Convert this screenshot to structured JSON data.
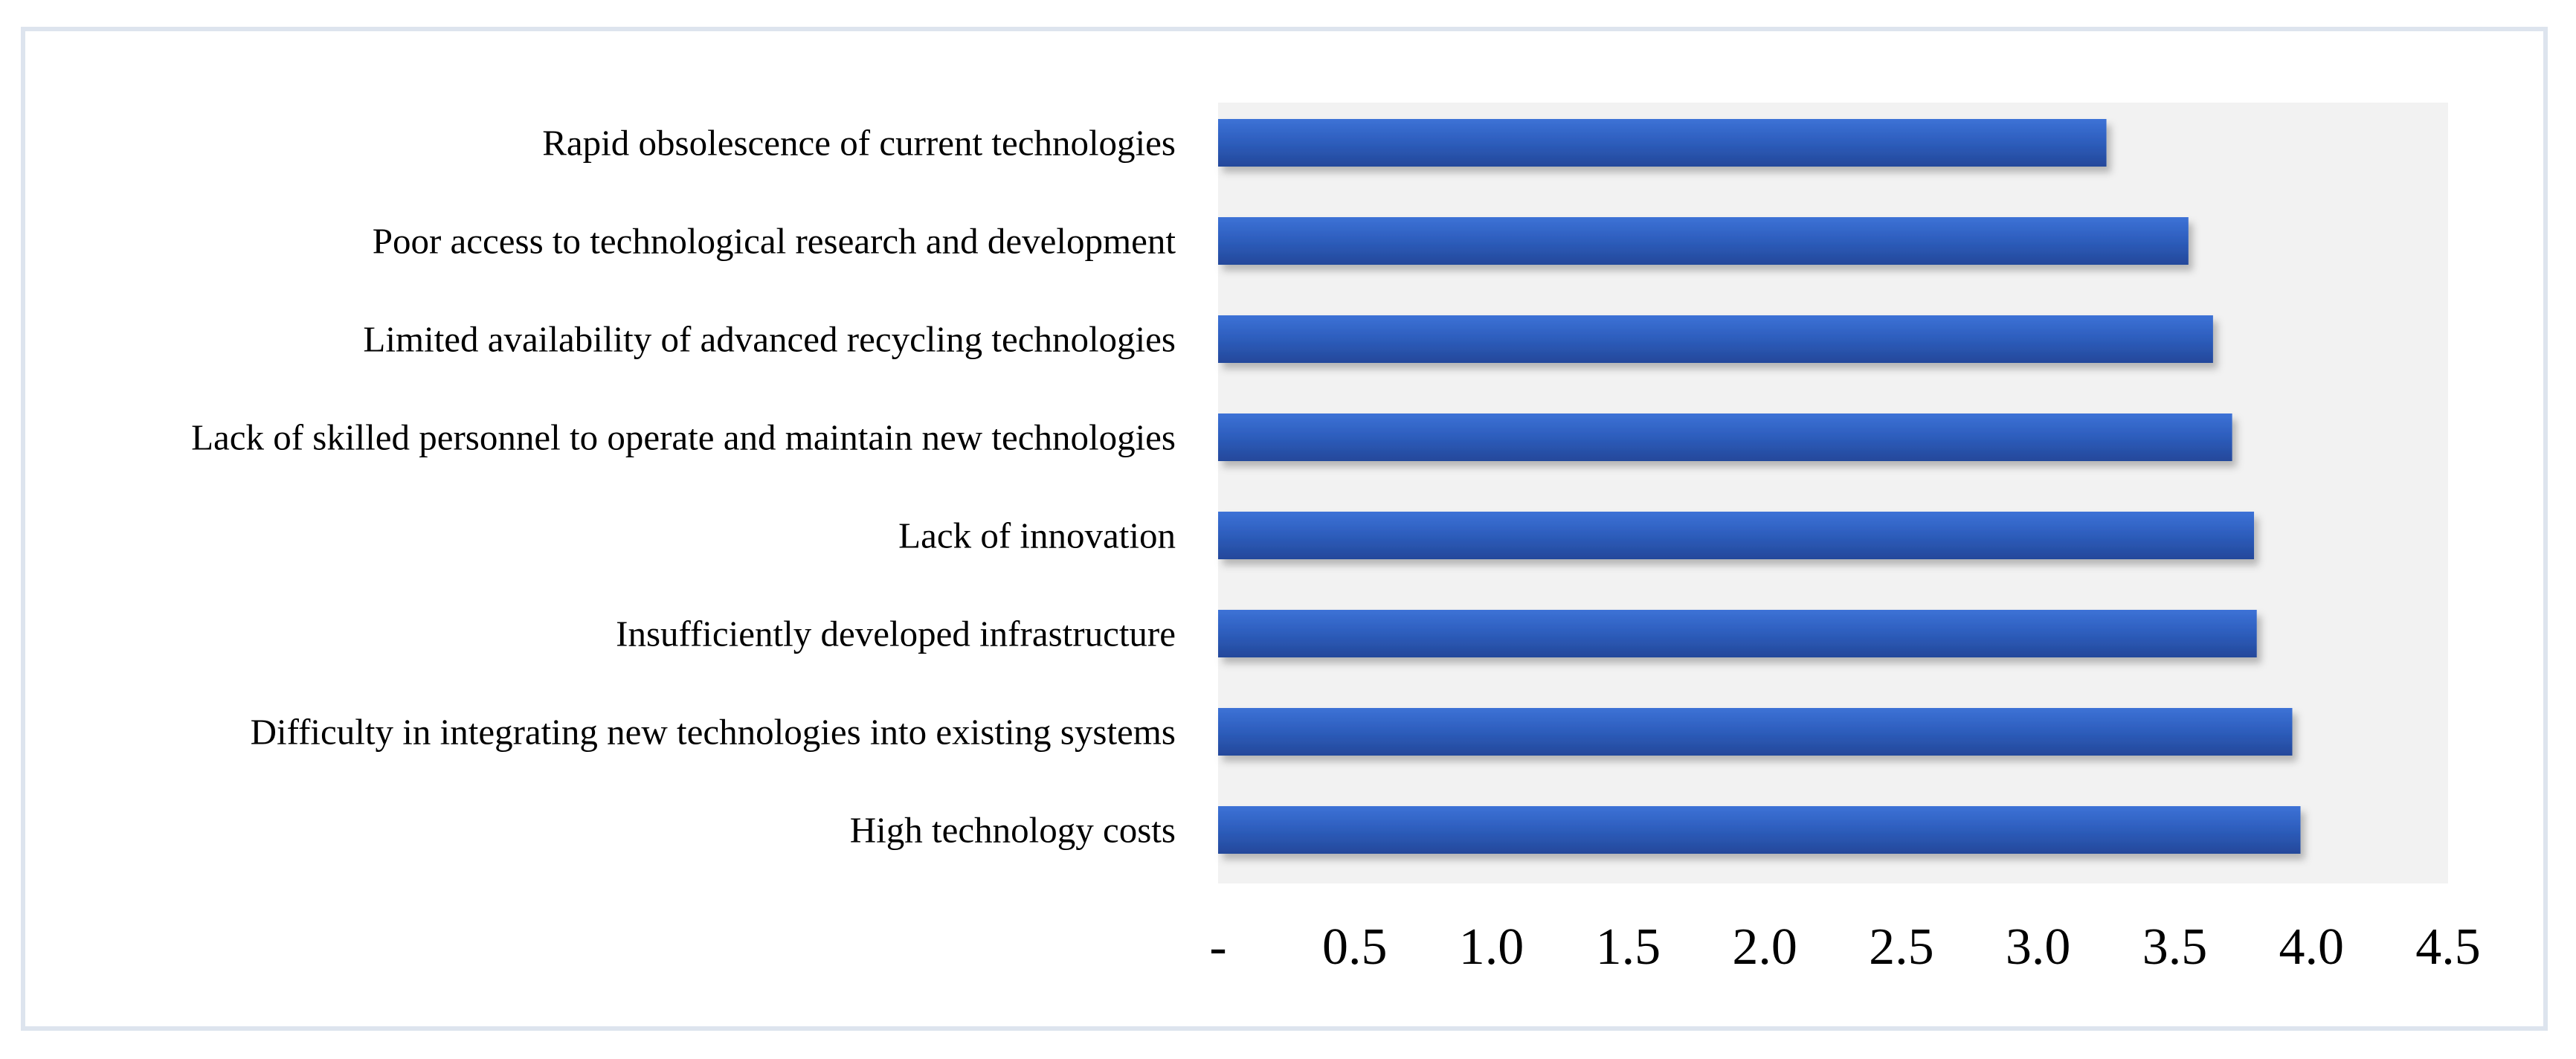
{
  "chart_data": {
    "type": "bar",
    "orientation": "horizontal",
    "title": "",
    "xlabel": "",
    "ylabel": "",
    "categories": [
      "Rapid obsolescence of current technologies",
      "Poor access to technological research and development",
      "Limited availability of advanced recycling technologies",
      "Lack of skilled personnel to operate and maintain new technologies",
      "Lack of innovation",
      "Insufficiently developed infrastructure",
      "Difficulty in integrating new technologies into existing systems",
      "High technology costs"
    ],
    "values": [
      3.25,
      3.55,
      3.64,
      3.71,
      3.79,
      3.8,
      3.93,
      3.96
    ],
    "xlim": [
      0,
      4.5
    ],
    "ticks": [
      0,
      0.5,
      1.0,
      1.5,
      2.0,
      2.5,
      3.0,
      3.5,
      4.0,
      4.5
    ],
    "tick_labels": [
      "-",
      "0.5",
      "1.0",
      "1.5",
      "2.0",
      "2.5",
      "3.0",
      "3.5",
      "4.0",
      "4.5"
    ],
    "grid": false,
    "bar_color": "#2e5fbf",
    "bar_color_light": "#3d72d6",
    "bar_color_dark": "#24489a",
    "plot_background": "#f2f2f2"
  }
}
